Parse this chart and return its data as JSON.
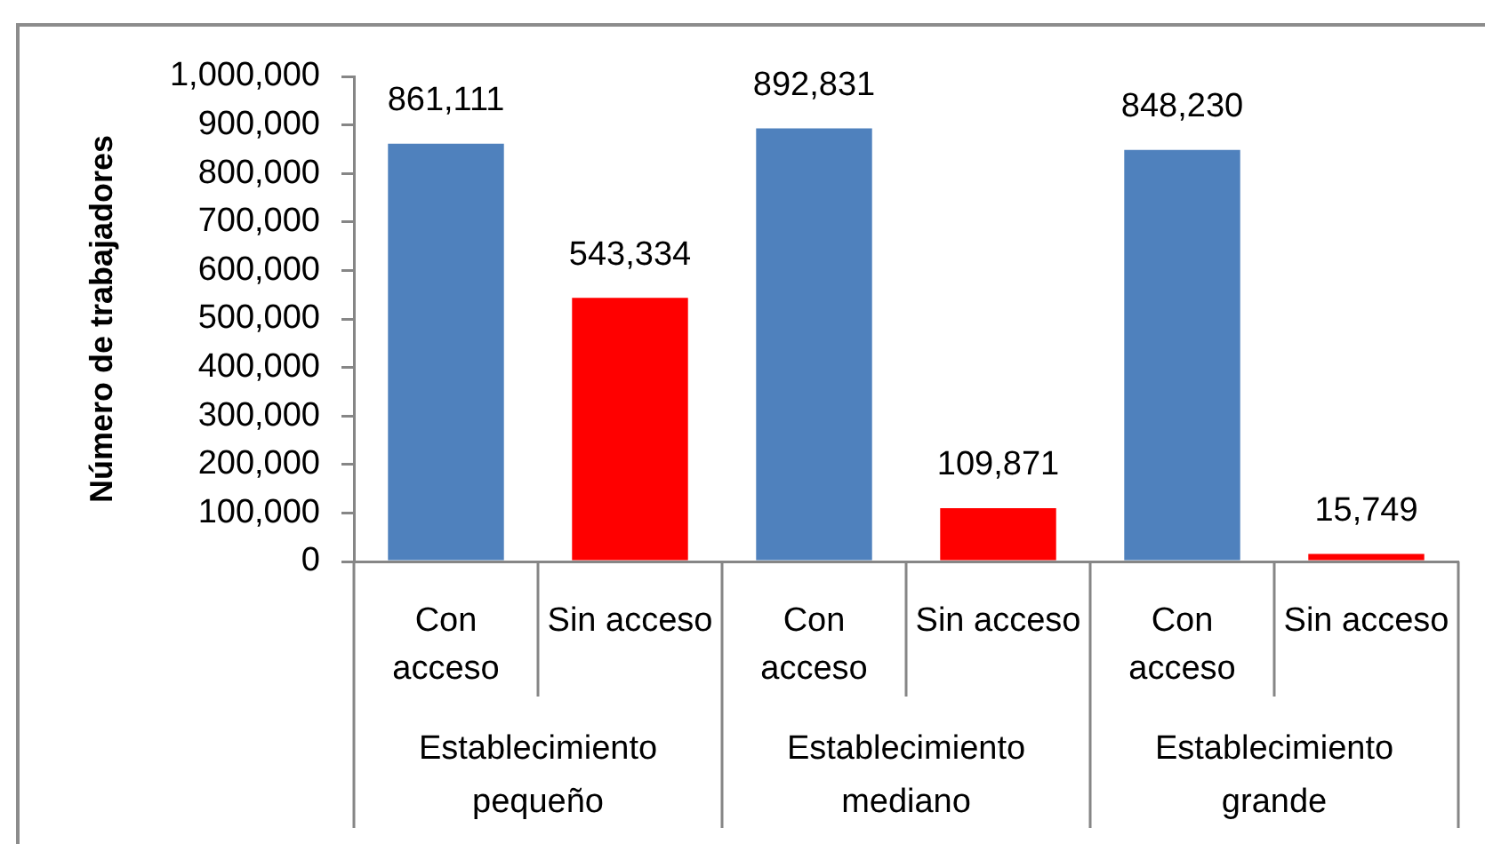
{
  "chart_data": {
    "type": "bar",
    "ylabel": "Número de trabajadores",
    "categories": [
      "Con acceso",
      "Sin acceso",
      "Con acceso",
      "Sin acceso",
      "Con acceso",
      "Sin acceso"
    ],
    "values": [
      861111,
      543334,
      892831,
      109871,
      848230,
      15749
    ],
    "value_labels": [
      "861,111",
      "543,334",
      "892,831",
      "109,871",
      "848,230",
      "15,749"
    ],
    "colors": [
      "#4f81bd",
      "#ff0000",
      "#4f81bd",
      "#ff0000",
      "#4f81bd",
      "#ff0000"
    ],
    "ylim": [
      0,
      1000000
    ],
    "yticks": [
      0,
      {
        "value": 100000,
        "label": "100,000"
      },
      {
        "value": 200000,
        "label": "200,000"
      },
      {
        "value": 300000,
        "label": "300,000"
      },
      {
        "value": 400000,
        "label": "400,000"
      },
      {
        "value": 500000,
        "label": "500,000"
      },
      {
        "value": 600000,
        "label": "600,000"
      },
      {
        "value": 700000,
        "label": "700,000"
      },
      {
        "value": 800000,
        "label": "800,000"
      },
      {
        "value": 900000,
        "label": "900,000"
      },
      {
        "value": 1000000,
        "label": "1,000,000"
      }
    ],
    "annotations": [
      "Establecimiento pequeño",
      "Establecimiento mediano",
      "Establecimiento grande"
    ]
  }
}
